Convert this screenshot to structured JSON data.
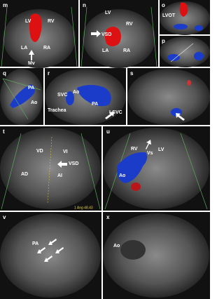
{
  "panels": [
    {
      "label": "m",
      "annotations": [
        "LV",
        "RV",
        "LA",
        "RA",
        "Mv"
      ]
    },
    {
      "label": "n",
      "annotations": [
        "LV",
        "RV",
        "VSD",
        "LA",
        "RA"
      ]
    },
    {
      "label": "o",
      "annotations": [
        "LVOT"
      ]
    },
    {
      "label": "p",
      "annotations": []
    },
    {
      "label": "q",
      "annotations": [
        "PA",
        "Ao"
      ]
    },
    {
      "label": "r",
      "annotations": [
        "SVC",
        "Ao",
        "PA",
        "Trachea",
        "LSVC"
      ]
    },
    {
      "label": "s",
      "annotations": []
    },
    {
      "label": "t",
      "annotations": [
        "VD",
        "VI",
        "VSD",
        "AD",
        "AI",
        "1 Ang 48.43"
      ]
    },
    {
      "label": "u",
      "annotations": [
        "RV",
        "Vs",
        "LV",
        "Ao"
      ]
    },
    {
      "label": "v",
      "annotations": [
        "PA"
      ]
    },
    {
      "label": "x",
      "annotations": [
        "Ao"
      ]
    }
  ]
}
